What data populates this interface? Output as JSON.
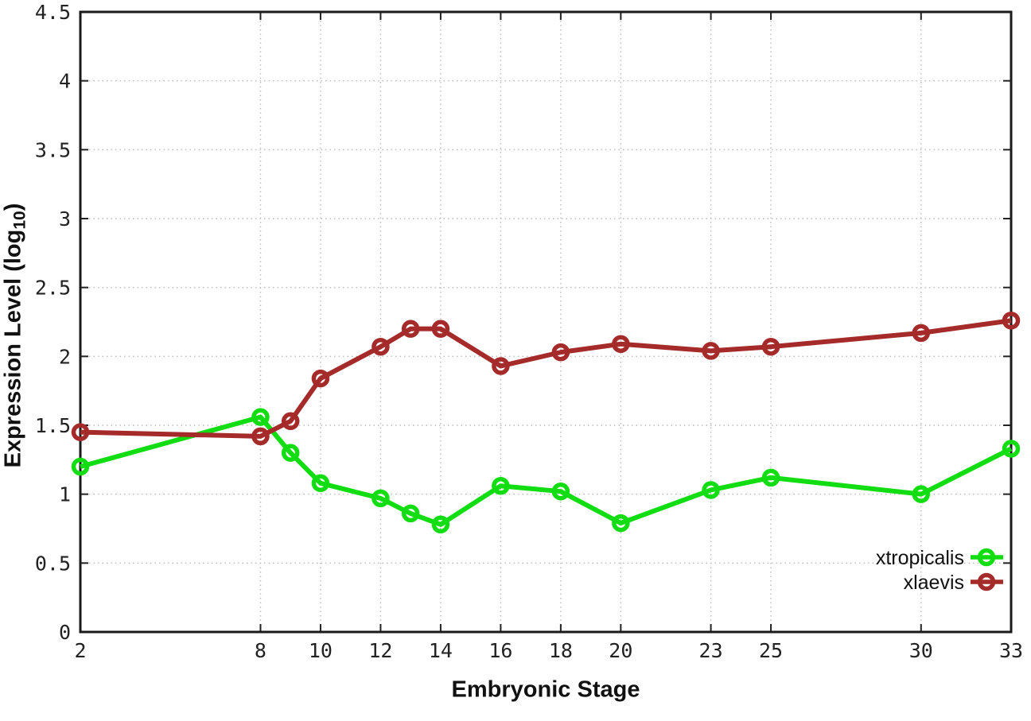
{
  "chart_data": {
    "type": "line",
    "x": [
      2,
      8,
      9,
      10,
      12,
      13,
      14,
      16,
      18,
      20,
      23,
      25,
      30,
      33
    ],
    "series": [
      {
        "name": "xtropicalis",
        "color": "#12dd12",
        "values": [
          1.2,
          1.56,
          1.3,
          1.08,
          0.97,
          0.86,
          0.78,
          1.06,
          1.02,
          0.79,
          1.03,
          1.12,
          1.0,
          1.33
        ]
      },
      {
        "name": "xlaevis",
        "color": "#a52a2a",
        "values": [
          1.45,
          1.42,
          1.53,
          1.84,
          2.07,
          2.2,
          2.2,
          1.93,
          2.03,
          2.09,
          2.04,
          2.07,
          2.17,
          2.26
        ]
      }
    ],
    "xlabel": "Embryonic Stage",
    "ylabel_main": "Expression Level (log",
    "ylabel_sub": "10",
    "ylabel_end": ")",
    "xlim": [
      2,
      33
    ],
    "ylim": [
      0,
      4.5
    ],
    "x_ticks": [
      2,
      8,
      10,
      12,
      14,
      16,
      18,
      20,
      23,
      25,
      30,
      33
    ],
    "y_ticks": [
      0,
      0.5,
      1,
      1.5,
      2,
      2.5,
      3,
      3.5,
      4,
      4.5
    ],
    "y_tick_labels": [
      "0",
      "0.5",
      "1",
      "1.5",
      "2",
      "2.5",
      "3",
      "3.5",
      "4",
      "4.5"
    ],
    "grid": true,
    "legend_position": "inside-bottom-right",
    "marker": "open-circle"
  },
  "colors": {
    "background": "#ffffff",
    "border": "#1a1a1a",
    "grid": "#bcbcbc",
    "tick": "#222222",
    "text": "#222222"
  }
}
